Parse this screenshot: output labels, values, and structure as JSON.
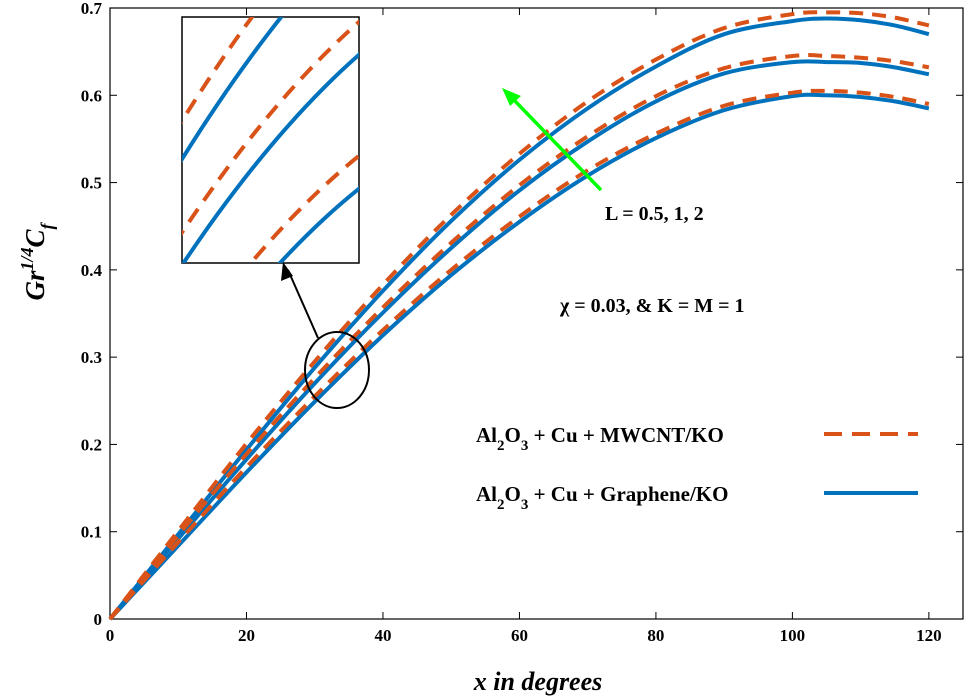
{
  "chart_data": {
    "type": "line",
    "xlabel": "x in degrees",
    "ylabel": {
      "base": "Gr",
      "sup": "1/4",
      "main": "C",
      "sub": "f"
    },
    "xlim": [
      0,
      125
    ],
    "ylim": [
      0,
      0.7
    ],
    "xticks": [
      0,
      20,
      40,
      60,
      80,
      100,
      120
    ],
    "yticks": [
      0,
      0.1,
      0.2,
      0.3,
      0.4,
      0.5,
      0.6,
      0.7
    ],
    "x": [
      0,
      10,
      20,
      30,
      40,
      50,
      60,
      70,
      80,
      90,
      100,
      105,
      110,
      115,
      120
    ],
    "series": [
      {
        "name": "Al2O3 + Cu + MWCNT/KO",
        "style": "dashed",
        "color": "#d95319",
        "curves": [
          [
            0,
            0.088,
            0.174,
            0.255,
            0.331,
            0.4,
            0.461,
            0.514,
            0.556,
            0.588,
            0.603,
            0.605,
            0.603,
            0.598,
            0.59
          ],
          [
            0,
            0.096,
            0.189,
            0.276,
            0.357,
            0.431,
            0.497,
            0.553,
            0.599,
            0.631,
            0.645,
            0.645,
            0.643,
            0.639,
            0.632
          ],
          [
            0,
            0.101,
            0.201,
            0.295,
            0.383,
            0.463,
            0.533,
            0.593,
            0.641,
            0.677,
            0.693,
            0.695,
            0.694,
            0.689,
            0.68
          ]
        ]
      },
      {
        "name": "Al2O3 + Cu + Graphene/KO",
        "style": "solid",
        "color": "#0072bd",
        "curves": [
          [
            0,
            0.084,
            0.168,
            0.249,
            0.325,
            0.394,
            0.455,
            0.508,
            0.551,
            0.583,
            0.599,
            0.6,
            0.598,
            0.593,
            0.585
          ],
          [
            0,
            0.092,
            0.183,
            0.27,
            0.351,
            0.425,
            0.491,
            0.547,
            0.593,
            0.625,
            0.638,
            0.638,
            0.637,
            0.632,
            0.624
          ],
          [
            0,
            0.097,
            0.194,
            0.288,
            0.376,
            0.456,
            0.526,
            0.585,
            0.633,
            0.67,
            0.685,
            0.688,
            0.686,
            0.68,
            0.67
          ]
        ]
      }
    ],
    "annotations": {
      "arrow_label": "L = 0.5, 1, 2",
      "params": "χ = 0.03, &  K = M = 1"
    },
    "legend": {
      "placement": "bottom-right",
      "entries": [
        {
          "pre": "Al",
          "sub1": "2",
          "mid": "O",
          "sub2": "3",
          "post": " + Cu + MWCNT/KO",
          "style": "dashed",
          "color": "#d95319"
        },
        {
          "pre": "Al",
          "sub1": "2",
          "mid": "O",
          "sub2": "3",
          "post": " + Cu + Graphene/KO",
          "style": "solid",
          "color": "#0072bd"
        }
      ]
    },
    "grid": false,
    "arrow_color": "#00ff00"
  }
}
